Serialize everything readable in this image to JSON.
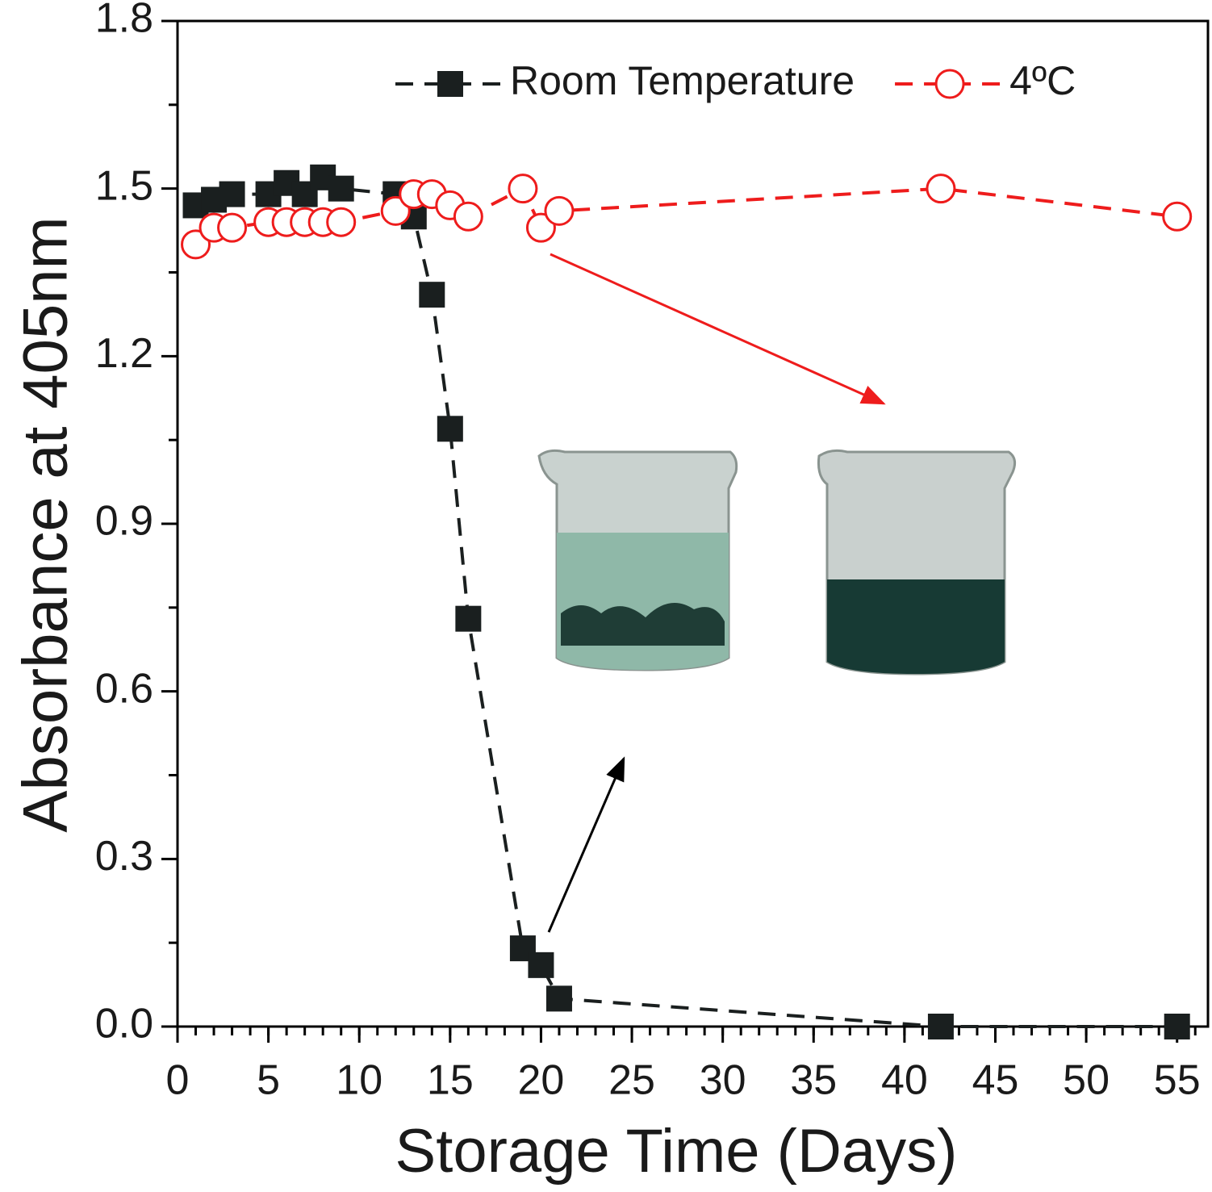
{
  "chart_data": {
    "type": "line",
    "xlabel": "Storage Time (Days)",
    "ylabel": "Absorbance at 405nm",
    "xlim": [
      0,
      56.7
    ],
    "ylim": [
      0,
      1.8
    ],
    "xticks": [
      0,
      5,
      10,
      15,
      20,
      25,
      30,
      35,
      40,
      45,
      50,
      55
    ],
    "yticks": [
      {
        "value": 0,
        "label": "0.0"
      },
      0.3,
      0.6,
      0.9,
      1.2,
      1.5,
      1.8
    ],
    "legend": "upper right",
    "series": [
      {
        "name": "Room Temperature",
        "color": "#1a1f1f",
        "marker": "square",
        "x": [
          1,
          2,
          3,
          5,
          6,
          7,
          8,
          9,
          12,
          13,
          14,
          15,
          16,
          19,
          20,
          21,
          42,
          55
        ],
        "values": [
          1.47,
          1.48,
          1.49,
          1.49,
          1.51,
          1.49,
          1.52,
          1.5,
          1.49,
          1.45,
          1.31,
          1.07,
          0.73,
          0.14,
          0.11,
          0.05,
          0,
          0
        ]
      },
      {
        "name": "4ºC",
        "color": "#ee1c1c",
        "marker": "circle",
        "x": [
          1,
          2,
          3,
          5,
          6,
          7,
          8,
          9,
          12,
          13,
          14,
          15,
          16,
          19,
          20,
          21,
          42,
          55
        ],
        "values": [
          1.4,
          1.43,
          1.43,
          1.44,
          1.44,
          1.44,
          1.44,
          1.44,
          1.46,
          1.49,
          1.49,
          1.47,
          1.45,
          1.5,
          1.43,
          1.46,
          1.5,
          1.45
        ]
      }
    ]
  }
}
